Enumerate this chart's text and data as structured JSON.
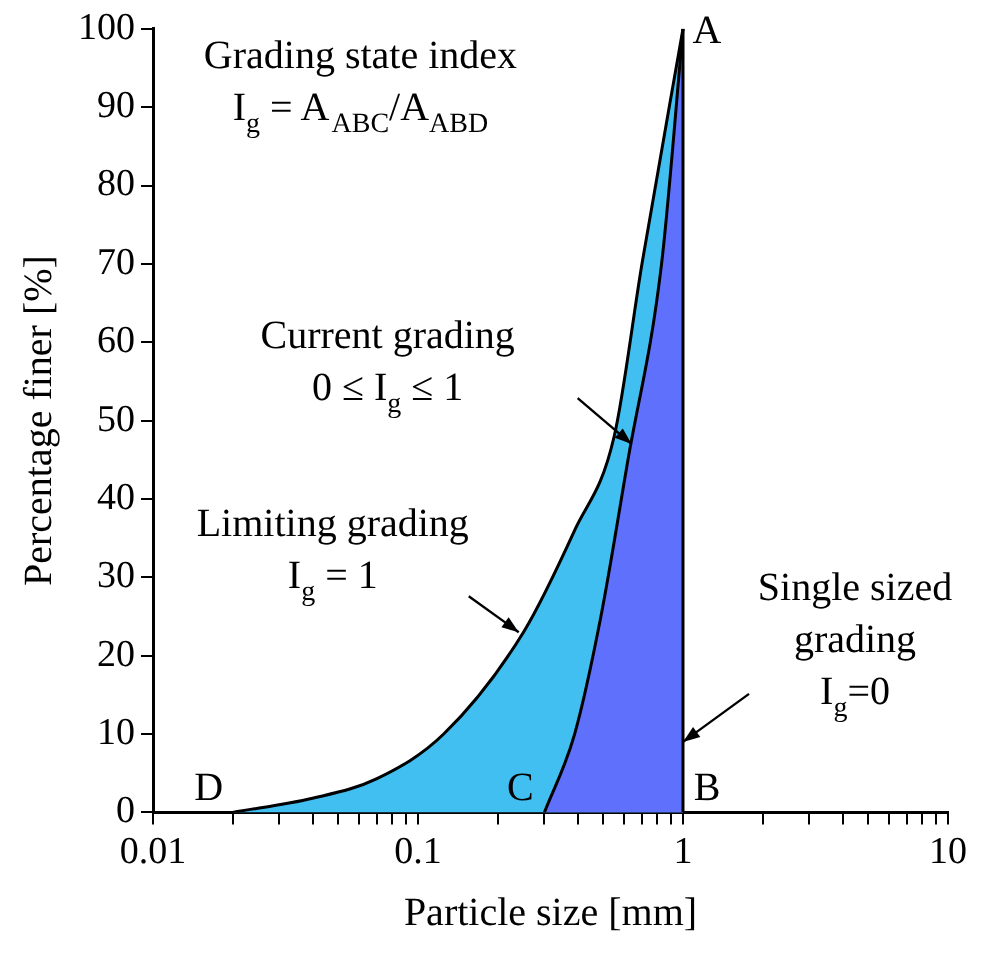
{
  "chart_data": {
    "type": "area",
    "xlabel": "Particle size [mm]",
    "ylabel": "Percentage finer [%]",
    "log": "x",
    "xlim": [
      0.01,
      10
    ],
    "ylim": [
      0,
      100
    ],
    "xticks": [
      0.01,
      {
        "value": 0.02,
        "label": null
      },
      {
        "value": 0.03,
        "label": null
      },
      {
        "value": 0.04,
        "label": null
      },
      {
        "value": 0.05,
        "label": null
      },
      {
        "value": 0.06,
        "label": null
      },
      {
        "value": 0.07,
        "label": null
      },
      {
        "value": 0.08,
        "label": null
      },
      {
        "value": 0.09,
        "label": null
      },
      0.1,
      {
        "value": 0.2,
        "label": null
      },
      {
        "value": 0.3,
        "label": null
      },
      {
        "value": 0.4,
        "label": null
      },
      {
        "value": 0.5,
        "label": null
      },
      {
        "value": 0.6,
        "label": null
      },
      {
        "value": 0.7,
        "label": null
      },
      {
        "value": 0.8,
        "label": null
      },
      {
        "value": 0.9,
        "label": null
      },
      1,
      {
        "value": 2,
        "label": null
      },
      {
        "value": 3,
        "label": null
      },
      {
        "value": 4,
        "label": null
      },
      {
        "value": 5,
        "label": null
      },
      {
        "value": 6,
        "label": null
      },
      {
        "value": 7,
        "label": null
      },
      {
        "value": 8,
        "label": null
      },
      {
        "value": 9,
        "label": null
      },
      10
    ],
    "yticks": [
      0,
      10,
      20,
      30,
      40,
      50,
      60,
      70,
      80,
      90,
      100
    ],
    "grid": false,
    "legend": false,
    "series": [
      {
        "type": "area",
        "color": "#41bff0",
        "x": [
          0.02,
          0.04,
          0.07,
          0.125,
          0.25,
          0.39,
          0.55,
          0.7,
          1
        ],
        "values": [
          0,
          1.8,
          4.3,
          10,
          23,
          36,
          48,
          70,
          100
        ]
      },
      {
        "type": "area",
        "color": "#5f70fc",
        "x": [
          0.3,
          0.39,
          0.49,
          0.62,
          0.83,
          1
        ],
        "values": [
          0,
          10,
          25,
          45,
          70,
          100
        ]
      },
      {
        "type": "line",
        "color": "#000000",
        "x": [
          1,
          1
        ],
        "values": [
          0,
          100
        ]
      }
    ],
    "annotations": [
      "Grading state index\nI$_{g}$ = A$_{ABC}$/A$_{ABD}$",
      {
        "text": "A",
        "x": 1,
        "y": 100
      },
      {
        "text": "B",
        "x": 1,
        "y": 0
      },
      {
        "text": "C",
        "x": 0.3,
        "y": 0
      },
      {
        "text": "D",
        "x": 0.02,
        "y": 0
      },
      {
        "text": "Current grading\n0 ≤ I$_{g}$ ≤ 1",
        "x": 0.64,
        "y": 47
      },
      {
        "text": "Limiting grading\nI$_{g}$ = 1",
        "x": 0.24,
        "y": 23
      },
      {
        "text": "Single sized\ngrading\nI$_{g}$=0",
        "x": 1,
        "y": 9
      }
    ]
  }
}
